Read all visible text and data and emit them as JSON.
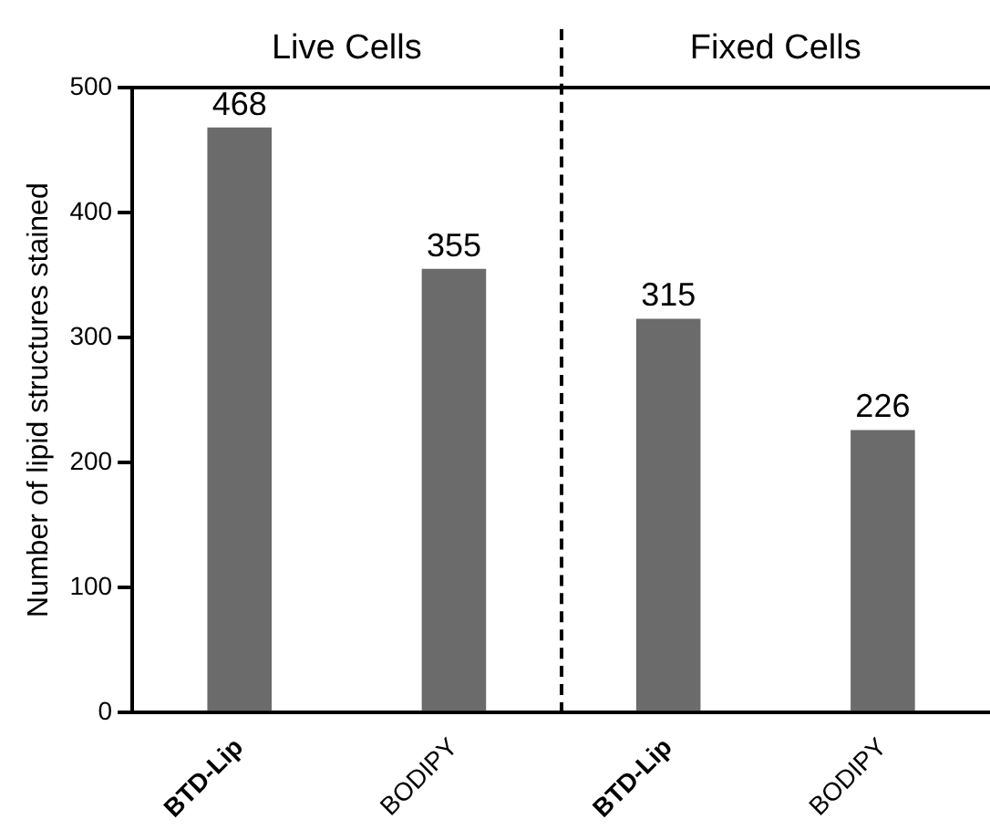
{
  "chart_data": {
    "type": "bar",
    "ylabel": "Number of lipid structures stained",
    "categories": [
      "BTD-Lip",
      "BODIPY",
      "BTD-Lip",
      "BODIPY"
    ],
    "values": [
      468,
      355,
      315,
      226
    ],
    "color": "#6b6b6b",
    "ylim": [
      0,
      500
    ],
    "yticks": [
      0,
      100,
      200,
      300,
      400,
      500
    ],
    "grid": false,
    "data_labels": true,
    "legend": false,
    "annotations": [
      "Live Cells",
      "Fixed Cells"
    ]
  }
}
